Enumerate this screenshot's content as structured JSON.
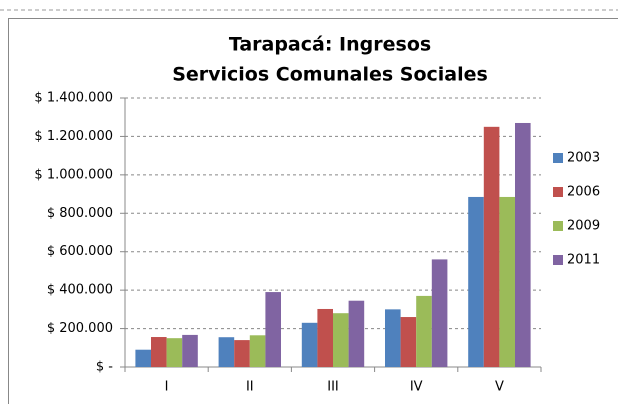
{
  "chart_data": {
    "type": "bar",
    "title": [
      "Tarapacá: Ingresos",
      "Servicios Comunales Sociales"
    ],
    "categories": [
      "I",
      "II",
      "III",
      "IV",
      "V"
    ],
    "series": [
      {
        "name": "2003",
        "color": "#4f81bd",
        "values": [
          90000,
          155000,
          230000,
          300000,
          885000
        ]
      },
      {
        "name": "2006",
        "color": "#c0504d",
        "values": [
          156000,
          140000,
          302000,
          260000,
          1250000
        ]
      },
      {
        "name": "2009",
        "color": "#9bbb59",
        "values": [
          150000,
          165000,
          280000,
          370000,
          885000
        ]
      },
      {
        "name": "2011",
        "color": "#8064a2",
        "values": [
          167000,
          390000,
          345000,
          560000,
          1270000
        ]
      }
    ],
    "ylim": [
      0,
      1400000
    ],
    "yticks": [
      {
        "value": 0,
        "label": "$ -"
      },
      {
        "value": 200000,
        "label": "$ 200.000"
      },
      {
        "value": 400000,
        "label": "$ 400.000"
      },
      {
        "value": 600000,
        "label": "$ 600.000"
      },
      {
        "value": 800000,
        "label": "$ 800.000"
      },
      {
        "value": 1000000,
        "label": "$ 1.000.000"
      },
      {
        "value": 1200000,
        "label": "$ 1.200.000"
      },
      {
        "value": 1400000,
        "label": "$ 1.400.000"
      }
    ],
    "grid": true,
    "legend": "right"
  }
}
